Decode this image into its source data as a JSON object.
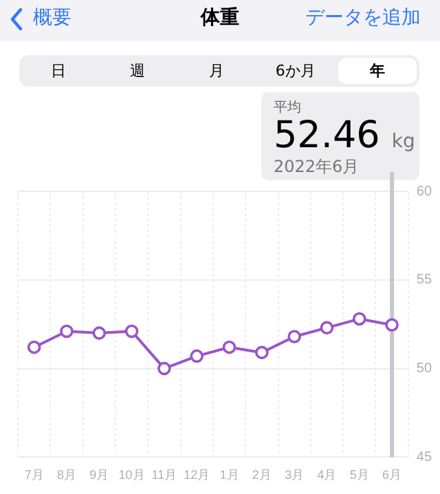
{
  "chart_data": {
    "type": "line",
    "title": "体重",
    "annotations": [
      "概要",
      "データを追加",
      "日",
      "週",
      "月",
      "6か月",
      "年",
      "平均",
      "52.46",
      "kg",
      "2022年6月"
    ],
    "categories": [
      "7月",
      "8月",
      "9月",
      "10月",
      "11月",
      "12月",
      "1月",
      "2月",
      "3月",
      "4月",
      "5月",
      "6月"
    ],
    "series": [
      {
        "color": "#9b55c8",
        "values": [
          51.2,
          52.1,
          52.0,
          52.1,
          50.0,
          50.7,
          51.2,
          50.9,
          51.8,
          52.3,
          52.8,
          52.46
        ]
      }
    ],
    "ylim": [
      45,
      60
    ],
    "yticks": [
      45,
      50,
      55,
      60
    ],
    "grid": true,
    "legend": false,
    "marker": "circle",
    "line_style": "solid",
    "ref_lines": [
      {
        "axis": "x",
        "value": "6月",
        "color": "#c8c8cc"
      }
    ]
  }
}
